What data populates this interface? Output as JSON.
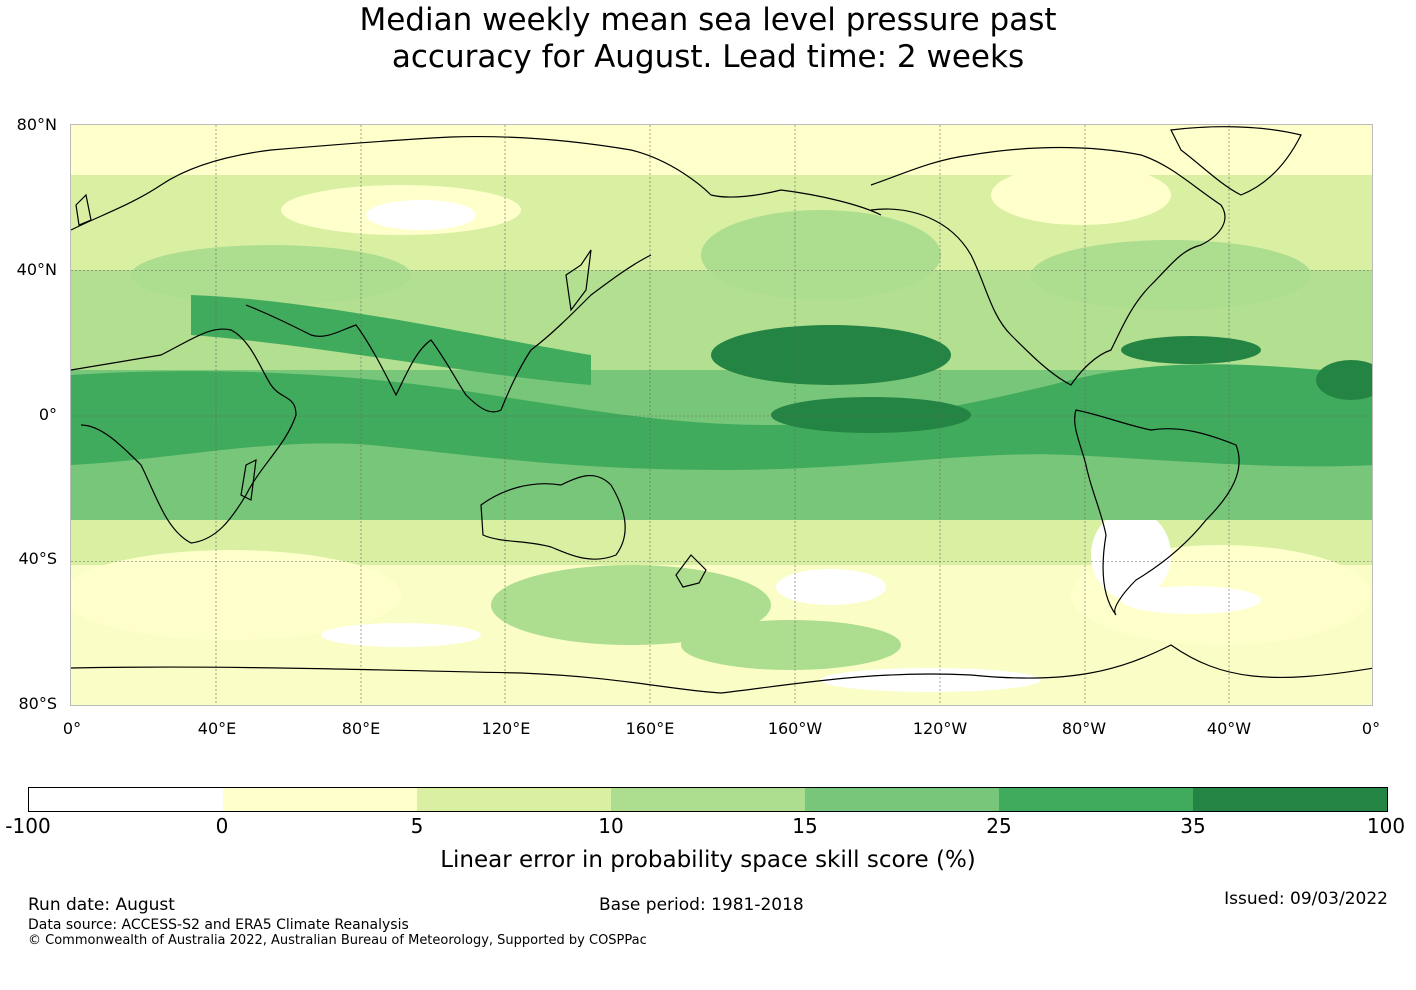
{
  "title_line1": "Median weekly mean sea level pressure past",
  "title_line2": "accuracy for August. Lead time: 2 weeks",
  "lat_labels": [
    "80°N",
    "40°N",
    "0°",
    "40°S",
    "80°S"
  ],
  "lon_labels": [
    "0°",
    "40°E",
    "80°E",
    "120°E",
    "160°E",
    "160°W",
    "120°W",
    "80°W",
    "40°W",
    "0°"
  ],
  "colorbar": {
    "ticks": [
      "-100",
      "0",
      "5",
      "10",
      "15",
      "25",
      "35",
      "100"
    ],
    "colors": [
      "#ffffff",
      "#ffffcc",
      "#d9f0a3",
      "#addd8e",
      "#78c679",
      "#41ab5d",
      "#238443"
    ],
    "label": "Linear error in probability space skill score (%)"
  },
  "footer": {
    "run_date": "Run date: August",
    "data_source": "Data source: ACCESS-S2 and ERA5 Climate Reanalysis",
    "copyright": "© Commonwealth of Australia 2022, Australian Bureau of Meteorology, Supported by COSPPac",
    "base_period": "Base period: 1981-2018",
    "issued": "Issued: 09/03/2022"
  },
  "map": {
    "projection": "equirectangular",
    "lon_range": [
      0,
      360
    ],
    "lat_range": [
      -80,
      80
    ],
    "gridlines": true
  }
}
